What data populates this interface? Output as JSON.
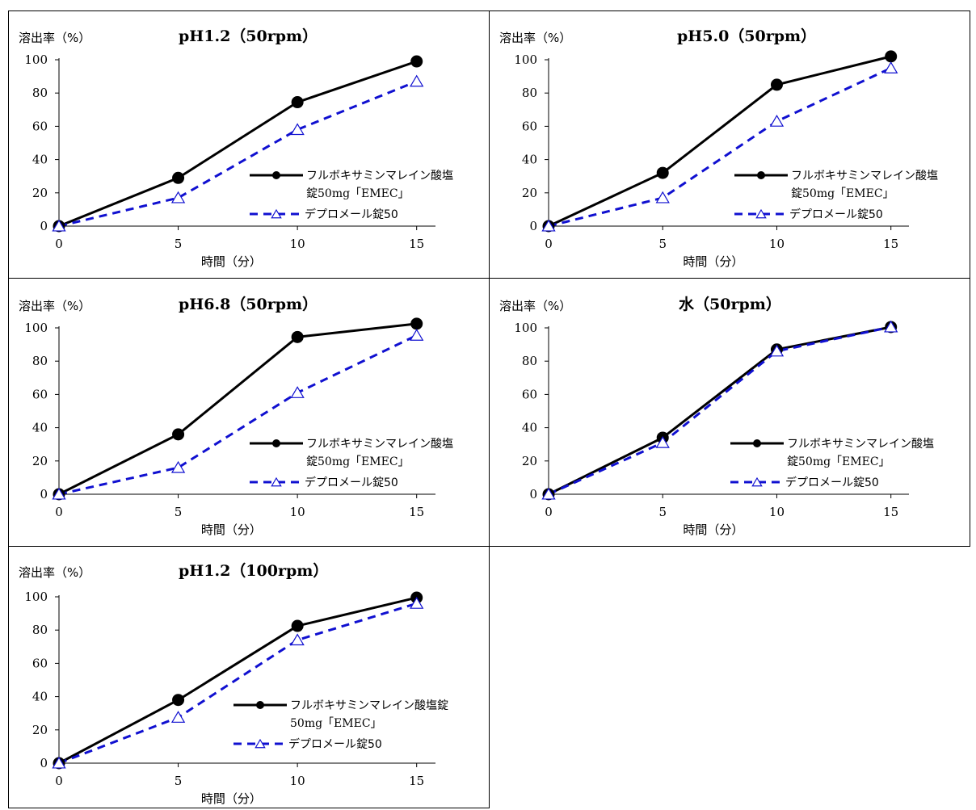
{
  "chart_data": [
    {
      "type": "line",
      "title": "pH1.2（50rpm）",
      "ylabel": "溶出率（%）",
      "xlabel": "時間（分）",
      "x": [
        0,
        5,
        10,
        15
      ],
      "xticks": [
        "0",
        "5",
        "10",
        "15"
      ],
      "yticks": [
        "0",
        "20",
        "40",
        "60",
        "80",
        "100"
      ],
      "ylim": [
        0,
        100
      ],
      "legend": {
        "label1a": "フルボキサミンマレイン酸塩",
        "label1b": "錠50mg「EMEC」",
        "label2": "デプロメール錠50",
        "placement": "lower-right"
      },
      "series": [
        {
          "name": "フルボキサミンマレイン酸塩錠50mg「EMEC」",
          "values": [
            0,
            29,
            74.5,
            99
          ],
          "color": "#000000",
          "marker": "circle"
        },
        {
          "name": "デプロメール錠50",
          "values": [
            0,
            17,
            58,
            87
          ],
          "color": "#1010d0",
          "marker": "triangle"
        }
      ]
    },
    {
      "type": "line",
      "title": "pH5.0（50rpm）",
      "ylabel": "溶出率（%）",
      "xlabel": "時間（分）",
      "x": [
        0,
        5,
        10,
        15
      ],
      "xticks": [
        "0",
        "5",
        "10",
        "15"
      ],
      "yticks": [
        "0",
        "20",
        "40",
        "60",
        "80",
        "100"
      ],
      "ylim": [
        0,
        100
      ],
      "legend": {
        "label1a": "フルボキサミンマレイン酸塩",
        "label1b": "錠50mg「EMEC」",
        "label2": "デプロメール錠50",
        "placement": "lower-right"
      },
      "series": [
        {
          "name": "フルボキサミンマレイン酸塩錠50mg「EMEC」",
          "values": [
            0,
            32,
            85,
            102
          ],
          "color": "#000000",
          "marker": "circle"
        },
        {
          "name": "デプロメール錠50",
          "values": [
            0,
            17,
            63,
            95
          ],
          "color": "#1010d0",
          "marker": "triangle"
        }
      ]
    },
    {
      "type": "line",
      "title": "pH6.8（50rpm）",
      "ylabel": "溶出率（%）",
      "xlabel": "時間（分）",
      "x": [
        0,
        5,
        10,
        15
      ],
      "xticks": [
        "0",
        "5",
        "10",
        "15"
      ],
      "yticks": [
        "0",
        "20",
        "40",
        "60",
        "80",
        "100"
      ],
      "ylim": [
        0,
        100
      ],
      "legend": {
        "label1a": "フルボキサミンマレイン酸塩",
        "label1b": "錠50mg「EMEC」",
        "label2": "デプロメール錠50",
        "placement": "lower-right"
      },
      "series": [
        {
          "name": "フルボキサミンマレイン酸塩錠50mg「EMEC」",
          "values": [
            0,
            36,
            94.5,
            102.5
          ],
          "color": "#000000",
          "marker": "circle"
        },
        {
          "name": "デプロメール錠50",
          "values": [
            0,
            16,
            61,
            95.5
          ],
          "color": "#1010d0",
          "marker": "triangle"
        }
      ]
    },
    {
      "type": "line",
      "title": "水（50rpm）",
      "ylabel": "溶出率（%）",
      "xlabel": "時間（分）",
      "x": [
        0,
        5,
        10,
        15
      ],
      "xticks": [
        "0",
        "5",
        "10",
        "15"
      ],
      "yticks": [
        "0",
        "20",
        "40",
        "60",
        "80",
        "100"
      ],
      "ylim": [
        0,
        100
      ],
      "legend": {
        "label1a": "フルボキサミンマレイン酸塩",
        "label1b": "錠50mg「EMEC」",
        "label2": "デプロメール錠50",
        "placement": "lower-right"
      },
      "series": [
        {
          "name": "フルボキサミンマレイン酸塩錠50mg「EMEC」",
          "values": [
            0,
            34,
            87,
            100.5
          ],
          "color": "#000000",
          "marker": "circle"
        },
        {
          "name": "デプロメール錠50",
          "values": [
            0,
            31,
            86,
            100.5
          ],
          "color": "#1010d0",
          "marker": "triangle"
        }
      ]
    },
    {
      "type": "line",
      "title": "pH1.2（100rpm）",
      "ylabel": "溶出率（%）",
      "xlabel": "時間（分）",
      "x": [
        0,
        5,
        10,
        15
      ],
      "xticks": [
        "0",
        "5",
        "10",
        "15"
      ],
      "yticks": [
        "0",
        "20",
        "40",
        "60",
        "80",
        "100"
      ],
      "ylim": [
        0,
        100
      ],
      "legend": {
        "label1a": "フルボキサミンマレイン酸塩錠",
        "label1b": "50mg「EMEC」",
        "label2": "デプロメール錠50",
        "placement": "lower-right"
      },
      "series": [
        {
          "name": "フルボキサミンマレイン酸塩錠50mg「EMEC」",
          "values": [
            0,
            38,
            82.5,
            99.5
          ],
          "color": "#000000",
          "marker": "circle"
        },
        {
          "name": "デプロメール錠50",
          "values": [
            0,
            27.5,
            74,
            96
          ],
          "color": "#1010d0",
          "marker": "triangle"
        }
      ]
    }
  ]
}
